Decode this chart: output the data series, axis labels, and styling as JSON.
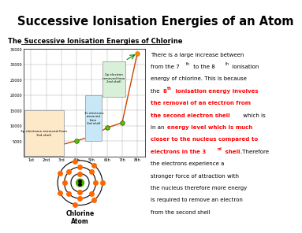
{
  "title": "Successive Ionisation Energies of an Atom",
  "subtitle": "The Successive Ionisation Energies of Chlorine",
  "title_bg": "#c8b4d4",
  "background": "#ffffff",
  "x_labels": [
    "1st",
    "2nd",
    "3rd",
    "4th",
    "5th",
    "6th",
    "7th",
    "8th"
  ],
  "y_values": [
    1250,
    2300,
    3820,
    5160,
    6540,
    9360,
    11000,
    33600
  ],
  "ylim": [
    0,
    35000
  ],
  "yticks": [
    5000,
    10000,
    15000,
    20000,
    25000,
    30000,
    35000
  ],
  "line_color": "#cc4400",
  "dot_color": "#66bb00",
  "dot_color_last": "#ff8800",
  "box1_label": "3p electrons removed from\n3rd shell",
  "box1_color": "#fde8c8",
  "box2_label": "3s electrons\nremoved\nfrom\n3rd shell",
  "box2_color": "#c8e8f8",
  "box3_label": "2p electron\nremoved from\n2nd shell",
  "box3_color": "#d8f0d8",
  "chlorine_label": "Chlorine\nAtom"
}
